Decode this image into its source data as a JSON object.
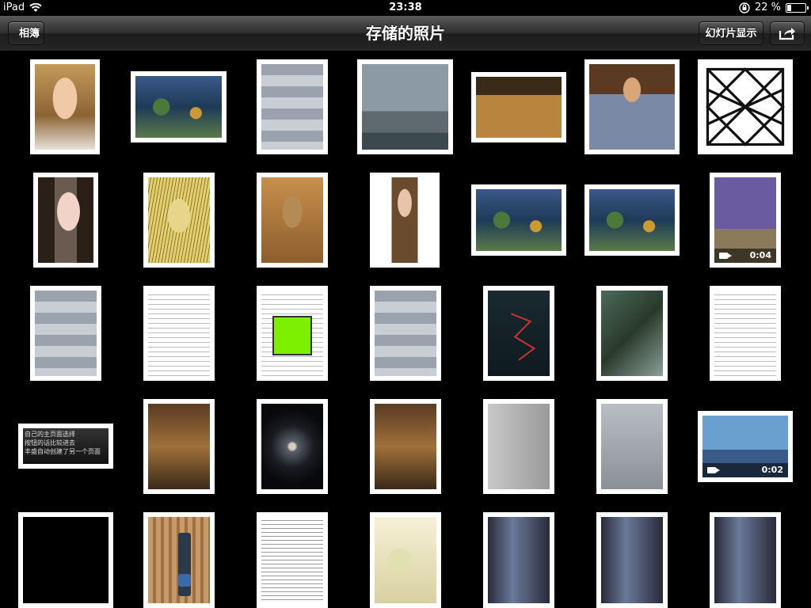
{
  "status_bar": {
    "device": "iPad",
    "time": "23:38",
    "battery_percent": "22 %",
    "battery_level": 0.22
  },
  "nav": {
    "back_label": "相簿",
    "title": "存储的照片",
    "slideshow_label": "幻灯片显示"
  },
  "videos": {
    "v1": "0:04",
    "v2": "0:02"
  },
  "subtitle_text": {
    "line1": "自己的主页面选择",
    "line2": "按钮的话比较进去",
    "line3": "丰盛自动创建了另一个页面"
  },
  "colors": {
    "nav_top": "#5a5a5a",
    "nav_bottom": "#262626",
    "background": "#000000",
    "thumb_border": "#ffffff"
  }
}
